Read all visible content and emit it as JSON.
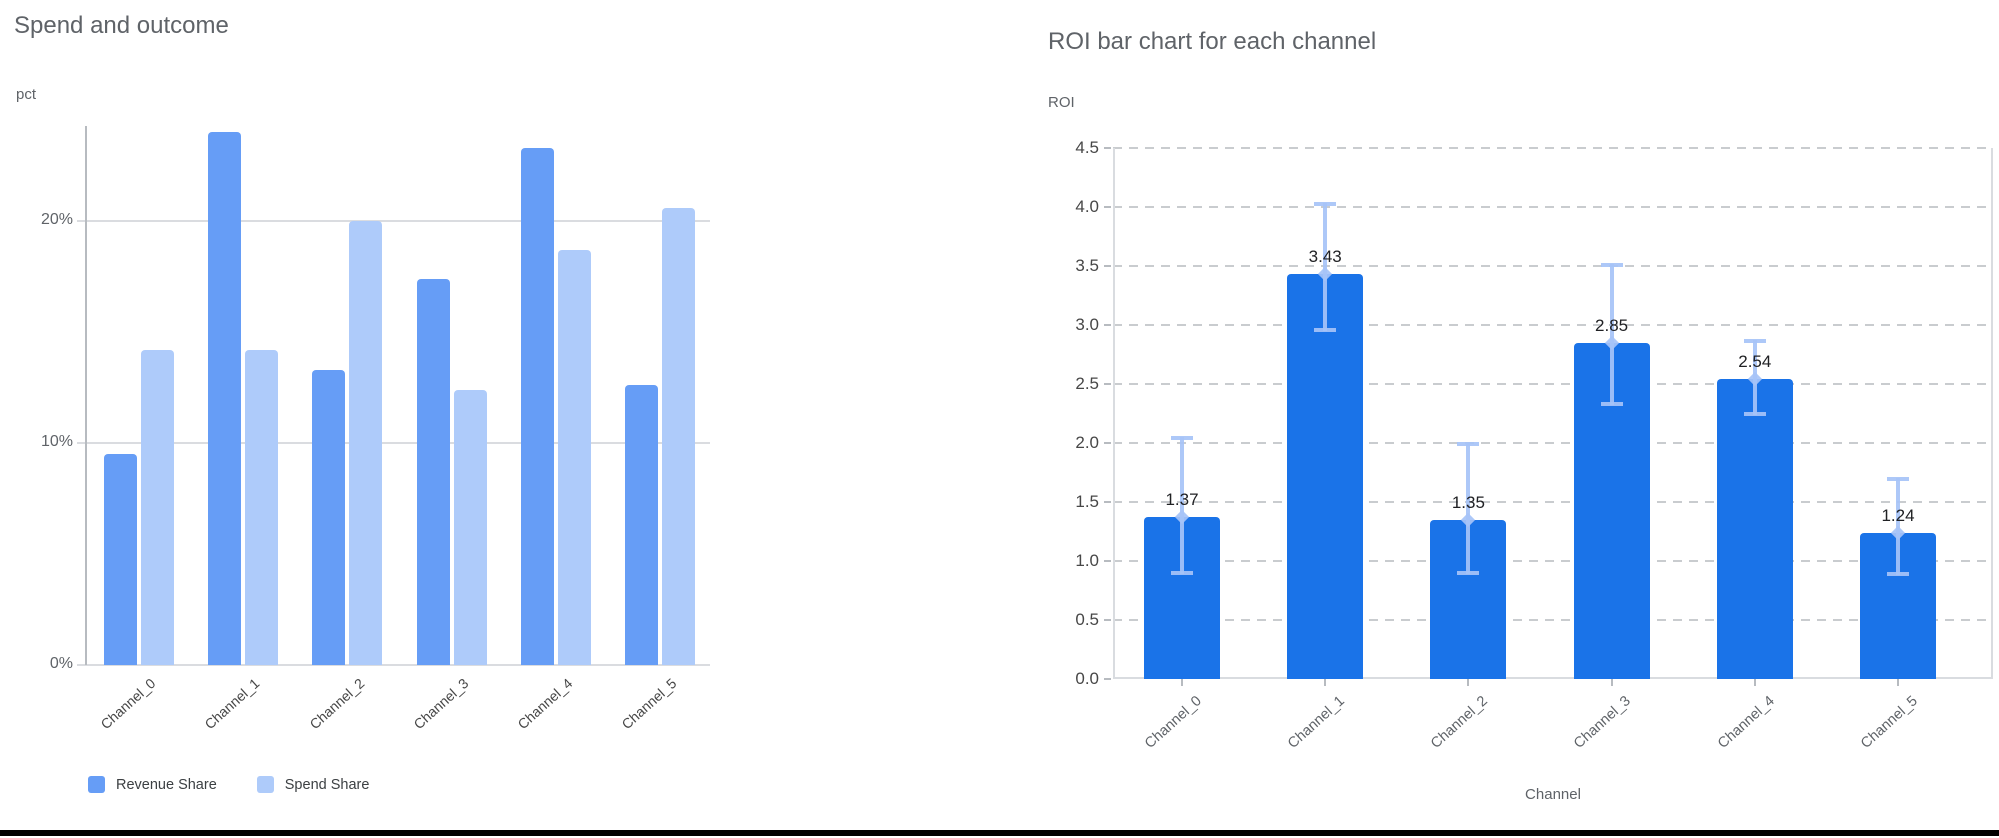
{
  "theme": {
    "background": "#ffffff",
    "grid_solid_color": "#dadce0",
    "grid_dashed_color": "#c9cccf",
    "axis_line_color": "#b7bbc0",
    "title_color": "#5f6368",
    "left_tick_color": "#5f6368",
    "right_tick_color": "#474747",
    "x_label_color_left": "#474747",
    "x_label_color_right": "#5f6368",
    "value_label_color": "#202124",
    "bottom_rule_color": "#000000"
  },
  "chart_data": [
    {
      "type": "bar",
      "title": "Spend and outcome",
      "ylabel": "pct",
      "xlabel": "",
      "categories": [
        "Channel_0",
        "Channel_1",
        "Channel_2",
        "Channel_3",
        "Channel_4",
        "Channel_5"
      ],
      "series": [
        {
          "name": "Revenue Share",
          "color": "#669DF6",
          "values": [
            9.5,
            24.0,
            13.3,
            17.4,
            23.3,
            12.6
          ]
        },
        {
          "name": "Spend Share",
          "color": "#AECBFA",
          "values": [
            14.2,
            14.2,
            20.0,
            12.4,
            18.7,
            20.6
          ]
        }
      ],
      "y_ticks": [
        {
          "value": 0,
          "label": "0%"
        },
        {
          "value": 10,
          "label": "10%"
        },
        {
          "value": 20,
          "label": "20%"
        }
      ],
      "ylim": [
        0,
        24.1
      ],
      "grid": "solid",
      "legend_position": "bottom"
    },
    {
      "type": "bar",
      "title": "ROI bar chart for each channel",
      "ylabel": "ROI",
      "xlabel": "Channel",
      "categories": [
        "Channel_0",
        "Channel_1",
        "Channel_2",
        "Channel_3",
        "Channel_4",
        "Channel_5"
      ],
      "values": [
        1.37,
        3.43,
        1.35,
        2.85,
        2.54,
        1.24
      ],
      "value_labels": [
        "1.37",
        "3.43",
        "1.35",
        "2.85",
        "2.54",
        "1.24"
      ],
      "error_low": [
        0.89,
        2.95,
        0.89,
        2.32,
        2.24,
        0.88
      ],
      "error_high": [
        2.05,
        4.03,
        2.0,
        3.52,
        2.87,
        1.7
      ],
      "bar_color": "#1A73E8",
      "error_color": "#A6C3F7",
      "y_ticks": [
        {
          "value": 0.0,
          "label": "0.0"
        },
        {
          "value": 0.5,
          "label": "0.5"
        },
        {
          "value": 1.0,
          "label": "1.0"
        },
        {
          "value": 1.5,
          "label": "1.5"
        },
        {
          "value": 2.0,
          "label": "2.0"
        },
        {
          "value": 2.5,
          "label": "2.5"
        },
        {
          "value": 3.0,
          "label": "3.0"
        },
        {
          "value": 3.5,
          "label": "3.5"
        },
        {
          "value": 4.0,
          "label": "4.0"
        },
        {
          "value": 4.5,
          "label": "4.5"
        }
      ],
      "ylim": [
        0,
        4.5
      ],
      "grid": "dashed",
      "legend_position": "none"
    }
  ]
}
